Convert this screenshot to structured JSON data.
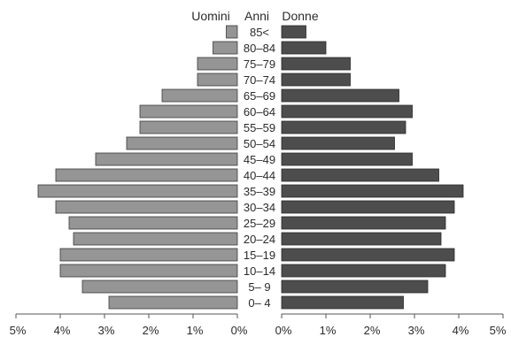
{
  "chart_data": {
    "type": "bar",
    "orientation": "horizontal-pyramid",
    "header_left": "Uomini",
    "header_center": "Anni",
    "header_right": "Donne",
    "age_groups": [
      "0– 4",
      "5– 9",
      "10–14",
      "15–19",
      "20–24",
      "25–29",
      "30–34",
      "35–39",
      "40–44",
      "45–49",
      "50–54",
      "55–59",
      "60–64",
      "65–69",
      "70–74",
      "75–79",
      "80–84",
      "85<"
    ],
    "series": [
      {
        "name": "Uomini",
        "color": "#959595",
        "values": [
          2.9,
          3.5,
          4.0,
          4.0,
          3.7,
          3.8,
          4.1,
          4.5,
          4.1,
          3.2,
          2.5,
          2.2,
          2.2,
          1.7,
          0.9,
          0.9,
          0.55,
          0.25
        ]
      },
      {
        "name": "Donne",
        "color": "#4d4d4d",
        "values": [
          2.75,
          3.3,
          3.7,
          3.9,
          3.6,
          3.7,
          3.9,
          4.1,
          3.55,
          2.95,
          2.55,
          2.8,
          2.95,
          2.65,
          1.55,
          1.55,
          1.0,
          0.55
        ]
      }
    ],
    "xlim": [
      0,
      5
    ],
    "ticks_left": [
      "5%",
      "4%",
      "3%",
      "2%",
      "1%",
      "0%"
    ],
    "ticks_right": [
      "0%",
      "1%",
      "2%",
      "3%",
      "4%",
      "5%"
    ]
  }
}
